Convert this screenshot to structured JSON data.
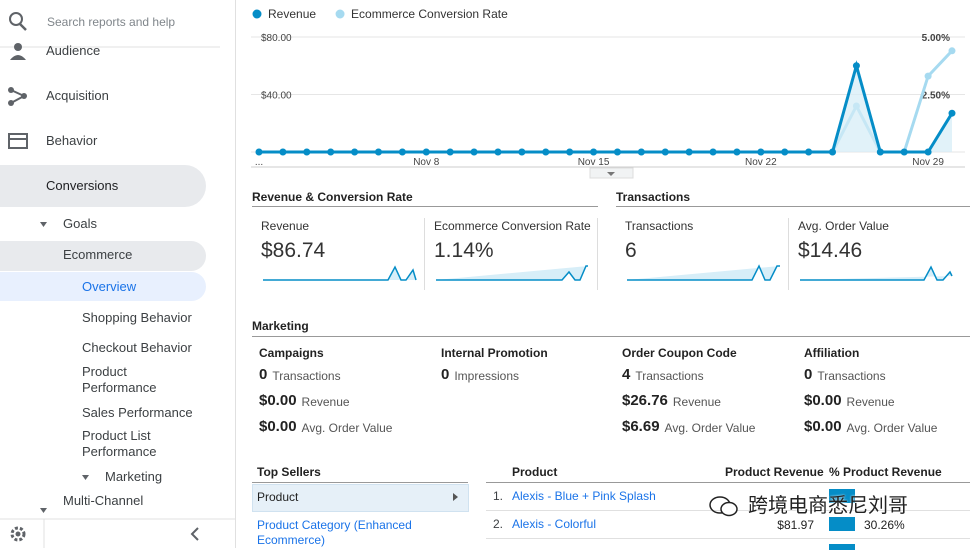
{
  "sidebar": {
    "search_placeholder": "Search reports and help",
    "items": [
      "Audience",
      "Acquisition",
      "Behavior",
      "Conversions"
    ],
    "conversions_items": [
      "Goals",
      "Ecommerce"
    ],
    "ecommerce_items": [
      "Overview",
      "Shopping Behavior",
      "Checkout Behavior",
      "Product Performance",
      "Sales Performance",
      "Product List Performance",
      "Marketing"
    ],
    "next_item": "Multi-Channel"
  },
  "chart_data": {
    "type": "line",
    "categories": [
      "...",
      null,
      null,
      null,
      null,
      null,
      null,
      "Nov 8",
      null,
      null,
      null,
      null,
      null,
      null,
      "Nov 15",
      null,
      null,
      null,
      null,
      null,
      null,
      "Nov 22",
      null,
      null,
      null,
      null,
      null,
      null,
      "Nov 29",
      null
    ],
    "series": [
      {
        "name": "Revenue",
        "color": "#058dc7",
        "values": [
          0,
          0,
          0,
          0,
          0,
          0,
          0,
          0,
          0,
          0,
          0,
          0,
          0,
          0,
          0,
          0,
          0,
          0,
          0,
          0,
          0,
          0,
          0,
          0,
          0,
          60,
          0,
          0,
          0,
          27
        ]
      },
      {
        "name": "Ecommerce Conversion Rate",
        "color": "#a6daf0",
        "axis": "y2",
        "values": [
          0,
          0,
          0,
          0,
          0,
          0,
          0,
          0,
          0,
          0,
          0,
          0,
          0,
          0,
          0,
          0,
          0,
          0,
          0,
          0,
          0,
          0,
          0,
          0,
          0,
          2.0,
          0,
          0,
          3.3,
          4.4
        ]
      }
    ],
    "ylim": [
      0,
      80
    ],
    "yticks": [
      {
        "value": 80,
        "label": "$80.00"
      },
      {
        "value": 40,
        "label": "$40.00"
      }
    ],
    "y2lim": [
      0,
      5
    ],
    "y2ticks": [
      {
        "value": 5,
        "label": "5.00%"
      },
      {
        "value": 2.5,
        "label": "2.50%"
      }
    ],
    "grid": true,
    "legend": "top-left"
  },
  "revenue_section": {
    "title": "Revenue & Conversion Rate",
    "metrics": [
      {
        "label": "Revenue",
        "value": "$86.74"
      },
      {
        "label": "Ecommerce Conversion Rate",
        "value": "1.14%"
      }
    ]
  },
  "transactions_section": {
    "title": "Transactions",
    "metrics": [
      {
        "label": "Transactions",
        "value": "6"
      },
      {
        "label": "Avg. Order Value",
        "value": "$14.46"
      }
    ]
  },
  "marketing": {
    "title": "Marketing",
    "columns": [
      {
        "title": "Campaigns",
        "rows": [
          {
            "value": "0",
            "label": "Transactions"
          },
          {
            "value": "$0.00",
            "label": "Revenue"
          },
          {
            "value": "$0.00",
            "label": "Avg. Order Value"
          }
        ]
      },
      {
        "title": "Internal Promotion",
        "rows": [
          {
            "value": "0",
            "label": "Impressions"
          }
        ]
      },
      {
        "title": "Order Coupon Code",
        "rows": [
          {
            "value": "4",
            "label": "Transactions"
          },
          {
            "value": "$26.76",
            "label": "Revenue"
          },
          {
            "value": "$6.69",
            "label": "Avg. Order Value"
          }
        ]
      },
      {
        "title": "Affiliation",
        "rows": [
          {
            "value": "0",
            "label": "Transactions"
          },
          {
            "value": "$0.00",
            "label": "Revenue"
          },
          {
            "value": "$0.00",
            "label": "Avg. Order Value"
          }
        ]
      }
    ]
  },
  "top_sellers": {
    "title": "Top Sellers",
    "dimensions": [
      "Product",
      "Product Category (Enhanced Ecommerce)"
    ]
  },
  "product_table": {
    "headers": [
      "Product",
      "Product Revenue",
      "% Product Revenue"
    ],
    "rows": [
      {
        "rank": "1.",
        "product": "Alexis - Blue + Pink Splash"
      },
      {
        "rank": "2.",
        "product": "Alexis - Colorful",
        "revenue": "$81.97",
        "percent": "30.26%"
      }
    ]
  },
  "watermark": "跨境电商悉尼刘哥"
}
